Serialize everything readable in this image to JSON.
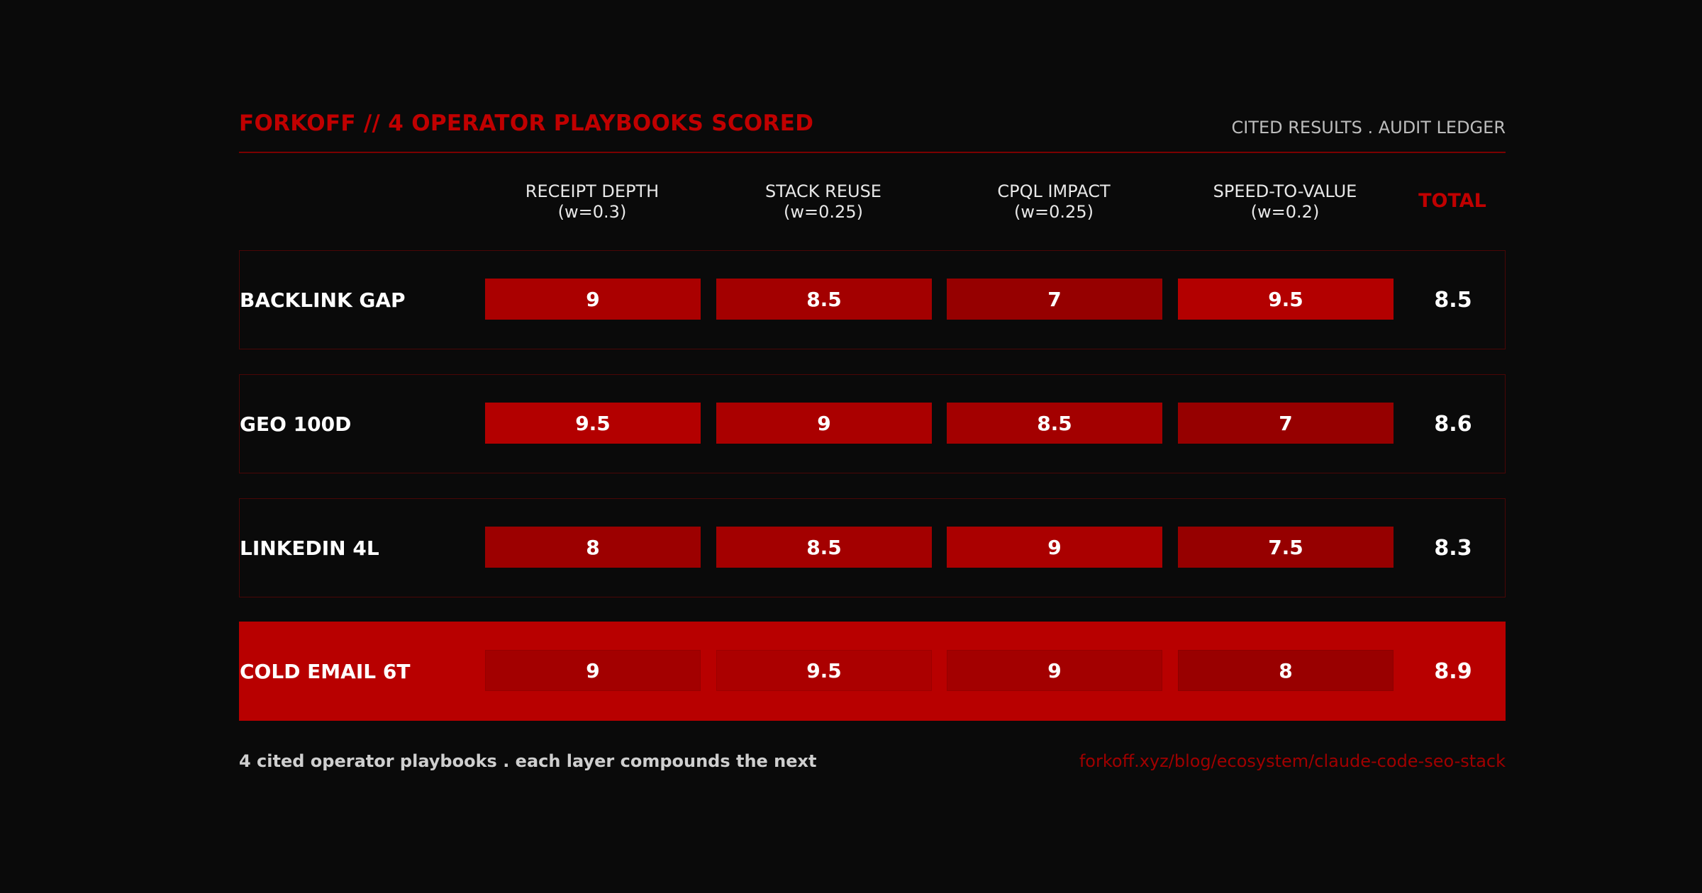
{
  "header": {
    "title": "FORKOFF // 4 OPERATOR PLAYBOOKS SCORED",
    "subtitle": "CITED RESULTS . AUDIT LEDGER"
  },
  "colors": {
    "background": "#0a0a0a",
    "accent": "#c00000",
    "highlight_row": "#b80000",
    "row_border": "#4a0606"
  },
  "chart_data": {
    "type": "heatmap",
    "columns": [
      {
        "name": "RECEIPT DEPTH",
        "weight": "(w=0.3)"
      },
      {
        "name": "STACK REUSE",
        "weight": "(w=0.25)"
      },
      {
        "name": "CPQL IMPACT",
        "weight": "(w=0.25)"
      },
      {
        "name": "SPEED-TO-VALUE",
        "weight": "(w=0.2)"
      }
    ],
    "total_label": "TOTAL",
    "rows": [
      {
        "label": "BACKLINK GAP",
        "values": [
          9,
          8.5,
          7,
          9.5
        ],
        "total": 8.5,
        "highlight": false
      },
      {
        "label": "GEO 100D",
        "values": [
          9.5,
          9,
          8.5,
          7
        ],
        "total": 8.6,
        "highlight": false
      },
      {
        "label": "LINKEDIN 4L",
        "values": [
          8,
          8.5,
          9,
          7.5
        ],
        "total": 8.3,
        "highlight": false
      },
      {
        "label": "COLD EMAIL 6T",
        "values": [
          9,
          9.5,
          9,
          8
        ],
        "total": 8.9,
        "highlight": true
      }
    ]
  },
  "footer": {
    "left": "4 cited operator playbooks . each layer compounds the next",
    "right": "forkoff.xyz/blog/ecosystem/claude-code-seo-stack"
  }
}
